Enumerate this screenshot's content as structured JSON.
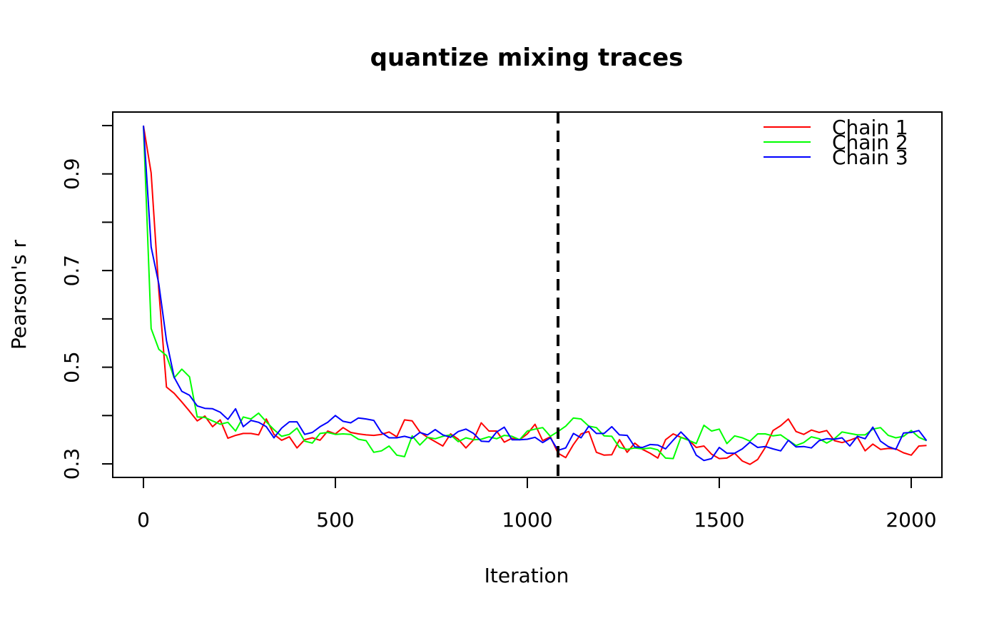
{
  "chart_data": {
    "type": "line",
    "title": "quantize mixing traces",
    "xlabel": "Iteration",
    "ylabel": "Pearson's r",
    "xlim": [
      -80,
      2080
    ],
    "ylim": [
      0.272,
      1.028
    ],
    "xticks": [
      0,
      500,
      1000,
      1500,
      2000
    ],
    "xtick_labels": [
      "0",
      "500",
      "1000",
      "1500",
      "2000"
    ],
    "yticks": [
      0.3,
      0.4,
      0.5,
      0.6,
      0.7,
      0.8,
      0.9,
      1.0
    ],
    "ytick_labels": [
      "0.3",
      "",
      "0.5",
      "",
      "0.7",
      "",
      "0.9",
      ""
    ],
    "grid": false,
    "legend_position": "top-right",
    "vline": {
      "x": 1080,
      "style": "dashed",
      "color": "#000000"
    },
    "x_step": 20,
    "series": [
      {
        "name": "Chain 1",
        "color": "#FF0000",
        "values": [
          1.0,
          0.902,
          0.658,
          0.459,
          0.446,
          0.428,
          0.409,
          0.389,
          0.399,
          0.377,
          0.391,
          0.353,
          0.359,
          0.363,
          0.363,
          0.36,
          0.393,
          0.361,
          0.349,
          0.356,
          0.333,
          0.35,
          0.354,
          0.349,
          0.368,
          0.362,
          0.375,
          0.365,
          0.362,
          0.36,
          0.359,
          0.361,
          0.366,
          0.356,
          0.391,
          0.389,
          0.366,
          0.355,
          0.346,
          0.337,
          0.362,
          0.351,
          0.333,
          0.35,
          0.385,
          0.368,
          0.368,
          0.345,
          0.353,
          0.35,
          0.362,
          0.382,
          0.348,
          0.356,
          0.322,
          0.313,
          0.34,
          0.362,
          0.367,
          0.324,
          0.318,
          0.319,
          0.35,
          0.324,
          0.343,
          0.33,
          0.322,
          0.312,
          0.35,
          0.362,
          0.355,
          0.35,
          0.334,
          0.337,
          0.32,
          0.311,
          0.312,
          0.322,
          0.306,
          0.299,
          0.309,
          0.334,
          0.369,
          0.379,
          0.393,
          0.367,
          0.361,
          0.37,
          0.365,
          0.369,
          0.348,
          0.344,
          0.349,
          0.355,
          0.327,
          0.341,
          0.33,
          0.332,
          0.331,
          0.323,
          0.318,
          0.337,
          0.338
        ]
      },
      {
        "name": "Chain 2",
        "color": "#00FF00",
        "values": [
          1.0,
          0.58,
          0.537,
          0.524,
          0.478,
          0.496,
          0.48,
          0.397,
          0.396,
          0.389,
          0.382,
          0.386,
          0.368,
          0.397,
          0.393,
          0.405,
          0.387,
          0.371,
          0.357,
          0.361,
          0.374,
          0.347,
          0.343,
          0.363,
          0.365,
          0.361,
          0.362,
          0.361,
          0.351,
          0.348,
          0.324,
          0.327,
          0.337,
          0.318,
          0.315,
          0.358,
          0.339,
          0.355,
          0.352,
          0.357,
          0.36,
          0.346,
          0.354,
          0.35,
          0.351,
          0.356,
          0.352,
          0.359,
          0.357,
          0.35,
          0.368,
          0.372,
          0.375,
          0.357,
          0.367,
          0.378,
          0.395,
          0.393,
          0.378,
          0.375,
          0.358,
          0.357,
          0.334,
          0.33,
          0.333,
          0.331,
          0.333,
          0.329,
          0.312,
          0.311,
          0.355,
          0.349,
          0.342,
          0.38,
          0.368,
          0.372,
          0.342,
          0.358,
          0.354,
          0.347,
          0.362,
          0.362,
          0.358,
          0.36,
          0.349,
          0.338,
          0.344,
          0.356,
          0.352,
          0.343,
          0.352,
          0.366,
          0.363,
          0.36,
          0.36,
          0.372,
          0.375,
          0.359,
          0.354,
          0.357,
          0.369,
          0.355,
          0.348
        ]
      },
      {
        "name": "Chain 3",
        "color": "#0000FF",
        "values": [
          1.0,
          0.749,
          0.672,
          0.555,
          0.479,
          0.45,
          0.442,
          0.42,
          0.415,
          0.414,
          0.407,
          0.392,
          0.414,
          0.377,
          0.39,
          0.386,
          0.377,
          0.354,
          0.374,
          0.387,
          0.387,
          0.361,
          0.365,
          0.377,
          0.386,
          0.4,
          0.388,
          0.385,
          0.395,
          0.393,
          0.39,
          0.365,
          0.354,
          0.354,
          0.357,
          0.353,
          0.365,
          0.36,
          0.371,
          0.36,
          0.355,
          0.367,
          0.372,
          0.363,
          0.347,
          0.346,
          0.366,
          0.376,
          0.35,
          0.35,
          0.351,
          0.355,
          0.344,
          0.354,
          0.328,
          0.333,
          0.363,
          0.354,
          0.378,
          0.363,
          0.363,
          0.377,
          0.36,
          0.359,
          0.335,
          0.334,
          0.34,
          0.339,
          0.331,
          0.349,
          0.366,
          0.35,
          0.318,
          0.307,
          0.311,
          0.334,
          0.322,
          0.322,
          0.331,
          0.345,
          0.334,
          0.336,
          0.331,
          0.327,
          0.349,
          0.335,
          0.336,
          0.333,
          0.348,
          0.352,
          0.351,
          0.354,
          0.337,
          0.357,
          0.352,
          0.376,
          0.347,
          0.336,
          0.33,
          0.364,
          0.365,
          0.369,
          0.348
        ]
      }
    ]
  }
}
